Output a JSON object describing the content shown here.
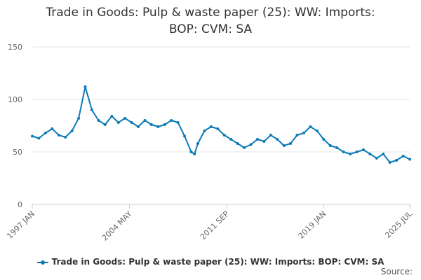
{
  "chart_data": {
    "type": "line",
    "title_lines": [
      "Trade in Goods: Pulp & waste paper (25): WW: Imports:",
      "BOP: CVM: SA"
    ],
    "xlabel": "",
    "ylabel": "",
    "ylim": [
      0,
      150
    ],
    "y_ticks": [
      0,
      50,
      100,
      150
    ],
    "x_range": [
      1997.0,
      2025.5
    ],
    "x_ticks": [
      {
        "label": "1997 JAN",
        "x": 1997.0
      },
      {
        "label": "2004 MAY",
        "x": 2004.33
      },
      {
        "label": "2011 SEP",
        "x": 2011.67
      },
      {
        "label": "2019 JAN",
        "x": 2019.0
      },
      {
        "label": "2025 JUL",
        "x": 2025.5
      }
    ],
    "grid": true,
    "legend_position": "bottom",
    "series": [
      {
        "name": "Trade in Goods: Pulp & waste paper (25): WW: Imports: BOP: CVM: SA",
        "color": "#0e7bb6",
        "x": [
          1997.0,
          1997.5,
          1998.0,
          1998.5,
          1999.0,
          1999.5,
          2000.0,
          2000.5,
          2001.0,
          2001.5,
          2002.0,
          2002.5,
          2003.0,
          2003.5,
          2004.0,
          2004.5,
          2005.0,
          2005.5,
          2006.0,
          2006.5,
          2007.0,
          2007.5,
          2008.0,
          2008.5,
          2009.0,
          2009.25,
          2009.5,
          2010.0,
          2010.5,
          2011.0,
          2011.5,
          2012.0,
          2012.5,
          2013.0,
          2013.5,
          2014.0,
          2014.5,
          2015.0,
          2015.5,
          2016.0,
          2016.5,
          2017.0,
          2017.5,
          2018.0,
          2018.5,
          2019.0,
          2019.5,
          2020.0,
          2020.5,
          2021.0,
          2021.5,
          2022.0,
          2022.5,
          2023.0,
          2023.5,
          2024.0,
          2024.5,
          2025.0,
          2025.5
        ],
        "values": [
          65,
          63,
          68,
          72,
          66,
          64,
          70,
          82,
          112,
          90,
          80,
          76,
          84,
          78,
          82,
          78,
          74,
          80,
          76,
          74,
          76,
          80,
          78,
          65,
          50,
          48,
          58,
          70,
          74,
          72,
          66,
          62,
          58,
          54,
          57,
          62,
          60,
          66,
          62,
          56,
          58,
          66,
          68,
          74,
          70,
          62,
          56,
          54,
          50,
          48,
          50,
          52,
          48,
          44,
          48,
          40,
          42,
          46,
          43
        ]
      }
    ]
  },
  "source_label": "Source:"
}
